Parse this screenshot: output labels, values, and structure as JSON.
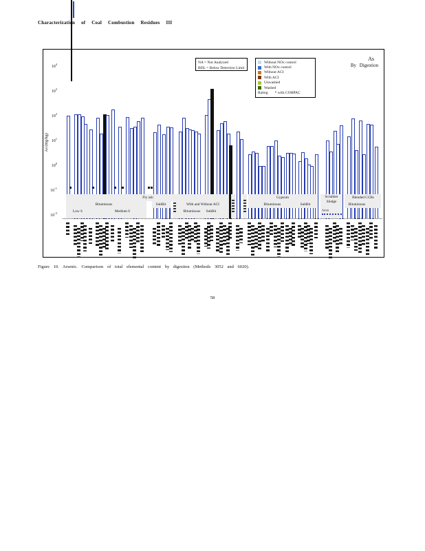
{
  "page": {
    "header_title": "Characterization of Coal Combustion Residues III",
    "page_number": "58"
  },
  "figure": {
    "caption": "Figure 10. Arsenic. Comparison of total elemental content by digestion (Methods 3052 and 6020)."
  },
  "chart_data": {
    "type": "bar",
    "title": "As",
    "subtitle": "By Digestion",
    "ylabel": "As (mg/kg)",
    "yscale": "log",
    "ylim": [
      0.01,
      10000
    ],
    "ytick_exponents": [
      4,
      3,
      2,
      1,
      0,
      -1,
      -2
    ],
    "grid": false,
    "legend_position": "top",
    "legend_notes": [
      "NA = Not Analyzed",
      "BDL = Below Detection Limit"
    ],
    "legend": {
      "entries": [
        {
          "label": "Without NOx control",
          "color": "#b9e0f2"
        },
        {
          "label": "With NOx control",
          "color": "#3a6bc9"
        },
        {
          "label": "Without ACI",
          "color": "#c87a1e"
        },
        {
          "label": "With ACI",
          "color": "#7a3a10"
        },
        {
          "label": "Unwashed",
          "color": "#a8c832"
        },
        {
          "label": "Washed",
          "color": "#3a6a12"
        }
      ],
      "footer_label": "Rating",
      "footer_note": "* with COHPAC"
    },
    "bar_outline_color": "#2239b0",
    "sample_labels_legible": false,
    "groups": [
      {
        "material": "Fly ash",
        "coal": "Bituminous",
        "sub": "Low S",
        "bars": [
          [
            96,
            90
          ],
          [
            107,
            100
          ],
          [
            112,
            100
          ],
          [
            117,
            85
          ],
          [
            121,
            40
          ],
          [
            129,
            25
          ],
          [
            139,
            72
          ],
          [
            144,
            17
          ],
          [
            149,
            100,
            "black"
          ],
          [
            153,
            95
          ]
        ]
      },
      {
        "material": "Fly ash",
        "coal": "Bituminous",
        "sub": "Medium S",
        "bars": [
          [
            161,
            155
          ],
          [
            171,
            32
          ],
          [
            182,
            78
          ],
          [
            188,
            28
          ],
          [
            193,
            32
          ],
          [
            198,
            52
          ],
          [
            204,
            72
          ]
        ]
      },
      {
        "material": "Fly ash",
        "coal": "SubBit",
        "sub": "",
        "bars": [
          [
            222,
            19
          ],
          [
            228,
            38
          ],
          [
            235,
            16
          ],
          [
            241,
            32
          ],
          [
            246,
            30
          ]
        ]
      },
      {
        "material": "Fly ash",
        "coal": "With and Without ACI",
        "sub": "Bituminous",
        "bars": [
          [
            259,
            20
          ],
          [
            264,
            73
          ],
          [
            269,
            28
          ],
          [
            273,
            24
          ],
          [
            277,
            23
          ],
          [
            282,
            20
          ],
          [
            286,
            17
          ],
          [
            297,
            95
          ]
        ]
      },
      {
        "material": "Fly ash",
        "coal": "With and Without ACI",
        "sub": "SubBit",
        "bars": [
          [
            301,
            420
          ],
          [
            305,
            1070,
            "black"
          ],
          [
            314,
            23
          ],
          [
            319,
            43
          ],
          [
            324,
            52
          ],
          [
            329,
            17
          ],
          [
            332,
            5.5,
            "black"
          ]
        ]
      },
      {
        "material": "Fly ash",
        "coal": "",
        "sub": "",
        "bars": [
          [
            343,
            20
          ],
          [
            348,
            10
          ]
        ]
      },
      {
        "material": "Gypsum",
        "coal": "Bituminous",
        "sub": "",
        "bars": [
          [
            360,
            2.4
          ],
          [
            365,
            3.1
          ],
          [
            370,
            2.8
          ],
          [
            375,
            0.8
          ],
          [
            380,
            0.85
          ],
          [
            387,
            5.3
          ],
          [
            392,
            5.3
          ],
          [
            398,
            8.9
          ],
          [
            403,
            2.1
          ],
          [
            408,
            1.9
          ],
          [
            415,
            2.8
          ],
          [
            420,
            2.8
          ],
          [
            424,
            2.6
          ]
        ]
      },
      {
        "material": "Gypsum",
        "coal": "SubBit",
        "sub": "",
        "bars": [
          [
            433,
            1.3
          ],
          [
            437,
            2.9
          ],
          [
            442,
            1.7
          ],
          [
            446,
            0.95
          ],
          [
            450,
            0.85
          ],
          [
            457,
            2.5
          ]
        ]
      },
      {
        "material": "Scrubber Sludge",
        "coal": "",
        "sub": "",
        "bars": [
          [
            473,
            8.9
          ],
          [
            478,
            3.2
          ],
          [
            484,
            21
          ],
          [
            488,
            6.4
          ],
          [
            493,
            37
          ]
        ]
      },
      {
        "material": "Blended CCBs",
        "coal": "Bituminous",
        "sub": "",
        "bars": [
          [
            504,
            13
          ],
          [
            510,
            69
          ],
          [
            515,
            3.6
          ],
          [
            521,
            57
          ],
          [
            526,
            2.4
          ],
          [
            532,
            41
          ],
          [
            537,
            39
          ],
          [
            544,
            5
          ]
        ]
      }
    ],
    "bdl_marker_x": [
      100,
      133,
      165,
      176,
      214,
      218
    ],
    "band_labels": [
      {
        "text": "Fly ash",
        "cx": 152,
        "cy": 215
      },
      {
        "text": "Bituminous",
        "cx": 88,
        "cy": 225
      },
      {
        "text": "Low S",
        "cx": 50,
        "cy": 235
      },
      {
        "text": "Medium S",
        "cx": 115,
        "cy": 235
      },
      {
        "text": "SubBit",
        "cx": 171,
        "cy": 225
      },
      {
        "text": "With and Without ACI",
        "cx": 232,
        "cy": 225
      },
      {
        "text": "Bituminous",
        "cx": 216,
        "cy": 235
      },
      {
        "text": "SubBit",
        "cx": 244,
        "cy": 235
      },
      {
        "text": "Gypsum",
        "cx": 348,
        "cy": 215
      },
      {
        "text": "Bituminous",
        "cx": 333,
        "cy": 225
      },
      {
        "text": "SubBit",
        "cx": 381,
        "cy": 225
      },
      {
        "text": "Scrubber",
        "cx": 419,
        "cy": 214
      },
      {
        "text": "Sludge",
        "cx": 419,
        "cy": 221
      },
      {
        "text": "Amm",
        "cx": 410,
        "cy": 233,
        "tiny": true
      },
      {
        "text": "Blended CCBs",
        "cx": 465,
        "cy": 215
      },
      {
        "text": "Bituminous",
        "cx": 456,
        "cy": 225
      }
    ],
    "band_boxes": [
      [
        33,
        210,
        237,
        10
      ],
      [
        33,
        220,
        117,
        25
      ],
      [
        158,
        220,
        28,
        10
      ],
      [
        188,
        210,
        7,
        35
      ],
      [
        195,
        220,
        75,
        25
      ],
      [
        273,
        210,
        7,
        35
      ],
      [
        290,
        210,
        6,
        35
      ],
      [
        298,
        210,
        100,
        20
      ],
      [
        403,
        210,
        32,
        35
      ],
      [
        438,
        210,
        53,
        20
      ]
    ],
    "rot_mark_columns": [
      [
        189,
        222,
        16
      ],
      [
        274,
        218,
        20
      ],
      [
        291,
        218,
        20
      ]
    ]
  }
}
